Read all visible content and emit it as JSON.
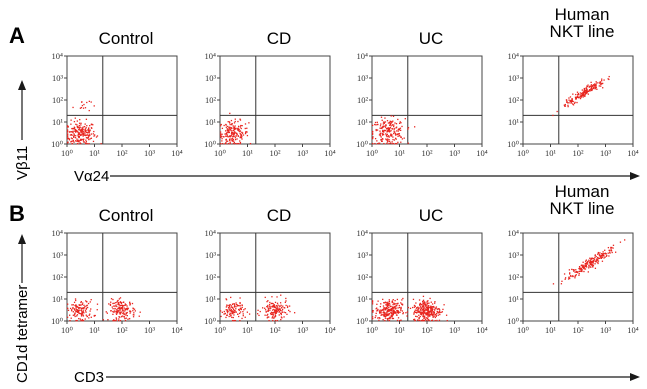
{
  "colors": {
    "dots": "#e8251f",
    "axis": "#444444",
    "text": "#1a1a1a"
  },
  "panels": {
    "A": {
      "letter": "A",
      "ylabel": "Vβ11",
      "xlabel": "Vα24"
    },
    "B": {
      "letter": "B",
      "ylabel": "CD1d tetramer",
      "xlabel": "CD3"
    }
  },
  "tick_labels": {
    "x": [
      "10⁰",
      "10¹",
      "10²",
      "10³",
      "10⁴"
    ],
    "y": [
      "10⁰",
      "10¹",
      "10²",
      "10³",
      "10⁴"
    ]
  },
  "chart_data": [
    {
      "type": "scatter",
      "title": "Control",
      "panel": "A",
      "xlabel": "Vα24",
      "ylabel": "Vβ11",
      "xscale": "log",
      "yscale": "log",
      "xlim": [
        1,
        10000
      ],
      "ylim": [
        1,
        10000
      ],
      "quadrant_gate": [
        20,
        20
      ],
      "clusters": [
        {
          "x": 3,
          "y": 3,
          "spread": 0.28,
          "n": 210
        },
        {
          "x": 3.5,
          "y": 60,
          "spread": 0.16,
          "n": 14
        }
      ]
    },
    {
      "type": "scatter",
      "title": "CD",
      "panel": "A",
      "xlabel": "Vα24",
      "ylabel": "Vβ11",
      "xscale": "log",
      "yscale": "log",
      "xlim": [
        1,
        10000
      ],
      "ylim": [
        1,
        10000
      ],
      "quadrant_gate": [
        20,
        20
      ],
      "clusters": [
        {
          "x": 3,
          "y": 3,
          "spread": 0.28,
          "n": 180
        }
      ]
    },
    {
      "type": "scatter",
      "title": "UC",
      "panel": "A",
      "xlabel": "Vα24",
      "ylabel": "Vβ11",
      "xscale": "log",
      "yscale": "log",
      "xlim": [
        1,
        10000
      ],
      "ylim": [
        1,
        10000
      ],
      "quadrant_gate": [
        20,
        20
      ],
      "clusters": [
        {
          "x": 4,
          "y": 3.5,
          "spread": 0.3,
          "n": 200
        }
      ]
    },
    {
      "type": "scatter",
      "title": "Human\nNKT line",
      "panel": "A",
      "xlabel": "Vα24",
      "ylabel": "Vβ11",
      "xscale": "log",
      "yscale": "log",
      "xlim": [
        1,
        10000
      ],
      "ylim": [
        1,
        10000
      ],
      "quadrant_gate": [
        20,
        20
      ],
      "clusters": [
        {
          "x": 150,
          "y": 200,
          "spread": 0.28,
          "n": 180,
          "diagonal": true
        }
      ]
    },
    {
      "type": "scatter",
      "title": "Control",
      "panel": "B",
      "xlabel": "CD3",
      "ylabel": "CD1d tetramer",
      "xscale": "log",
      "yscale": "log",
      "xlim": [
        1,
        10000
      ],
      "ylim": [
        1,
        10000
      ],
      "quadrant_gate": [
        20,
        20
      ],
      "clusters": [
        {
          "x": 3,
          "y": 3,
          "spread": 0.24,
          "n": 130
        },
        {
          "x": 100,
          "y": 3,
          "spread": 0.24,
          "n": 160
        }
      ]
    },
    {
      "type": "scatter",
      "title": "CD",
      "panel": "B",
      "xlabel": "CD3",
      "ylabel": "CD1d tetramer",
      "xscale": "log",
      "yscale": "log",
      "xlim": [
        1,
        10000
      ],
      "ylim": [
        1,
        10000
      ],
      "quadrant_gate": [
        20,
        20
      ],
      "clusters": [
        {
          "x": 3,
          "y": 3,
          "spread": 0.22,
          "n": 110
        },
        {
          "x": 100,
          "y": 3,
          "spread": 0.24,
          "n": 140
        }
      ]
    },
    {
      "type": "scatter",
      "title": "UC",
      "panel": "B",
      "xlabel": "CD3",
      "ylabel": "CD1d tetramer",
      "xscale": "log",
      "yscale": "log",
      "xlim": [
        1,
        10000
      ],
      "ylim": [
        1,
        10000
      ],
      "quadrant_gate": [
        20,
        20
      ],
      "clusters": [
        {
          "x": 4,
          "y": 3,
          "spread": 0.24,
          "n": 230
        },
        {
          "x": 100,
          "y": 3,
          "spread": 0.26,
          "n": 260
        }
      ]
    },
    {
      "type": "scatter",
      "title": "Human\nNKT line",
      "panel": "B",
      "xlabel": "CD3",
      "ylabel": "CD1d tetramer",
      "xscale": "log",
      "yscale": "log",
      "xlim": [
        1,
        10000
      ],
      "ylim": [
        1,
        10000
      ],
      "quadrant_gate": [
        20,
        20
      ],
      "clusters": [
        {
          "x": 250,
          "y": 400,
          "spread": 0.3,
          "n": 200,
          "diagonal": true
        }
      ]
    }
  ]
}
